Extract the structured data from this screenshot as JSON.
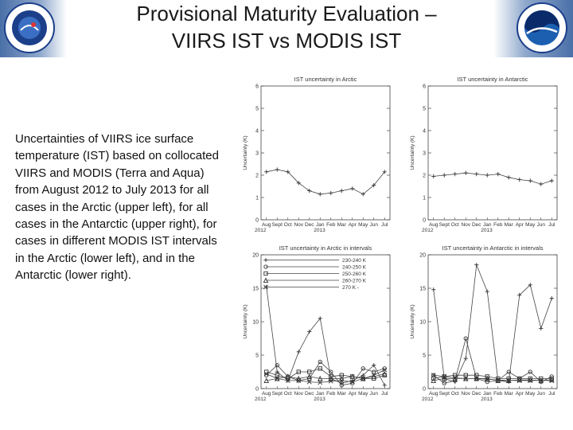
{
  "slide": {
    "title_line1": "Provisional Maturity Evaluation –",
    "title_line2": "VIIRS IST vs MODIS IST",
    "caption": "Uncertainties of VIIRS ice surface temperature (IST) based on collocated VIIRS and MODIS (Terra and Aqua) from August 2012 to July 2013 for all cases in the Arctic (upper left), for all cases in the Antarctic (upper right), for cases in different MODIS IST intervals in the Arctic (lower left), and in the Antarctic (lower right).",
    "left_logo": "nesdis-seal-icon",
    "right_logo": "noaa-logo-icon"
  },
  "chart_data": [
    {
      "id": "arctic-all",
      "type": "line",
      "title": "IST uncertainty in Arctic",
      "ylabel": "Uncertainty (K)",
      "xlabel": "",
      "categories": [
        "Aug",
        "Sept",
        "Oct",
        "Nov",
        "Dec",
        "Jan",
        "Feb",
        "Mar",
        "Apr",
        "May",
        "Jun",
        "Jul"
      ],
      "year_labels": [
        "2012",
        "2013"
      ],
      "ylim": [
        0,
        6
      ],
      "yticks": [
        0,
        1,
        2,
        3,
        4,
        5,
        6
      ],
      "series": [
        {
          "values": [
            2.15,
            2.25,
            2.15,
            1.65,
            1.3,
            1.15,
            1.2,
            1.3,
            1.4,
            1.15,
            1.55,
            2.15
          ]
        }
      ]
    },
    {
      "id": "antarctic-all",
      "type": "line",
      "title": "IST uncertainty in Antarctic",
      "ylabel": "Uncertainty (K)",
      "xlabel": "",
      "categories": [
        "Aug",
        "Sept",
        "Oct",
        "Nov",
        "Dec",
        "Jan",
        "Feb",
        "Mar",
        "Apr",
        "May",
        "Jun",
        "Jul"
      ],
      "year_labels": [
        "2012",
        "2013"
      ],
      "ylim": [
        0,
        6
      ],
      "yticks": [
        0,
        1,
        2,
        3,
        4,
        5,
        6
      ],
      "series": [
        {
          "values": [
            1.95,
            2.0,
            2.05,
            2.1,
            2.05,
            2.0,
            2.05,
            1.9,
            1.8,
            1.75,
            1.6,
            1.75
          ]
        }
      ]
    },
    {
      "id": "arctic-intervals",
      "type": "line",
      "title": "IST uncertainty in Arctic in intervals",
      "ylabel": "Uncertainty (K)",
      "xlabel": "",
      "categories": [
        "Aug",
        "Sept",
        "Oct",
        "Nov",
        "Dec",
        "Jan",
        "Feb",
        "Mar",
        "Apr",
        "May",
        "Jun",
        "Jul"
      ],
      "year_labels": [
        "2012",
        "2013"
      ],
      "ylim": [
        0,
        20
      ],
      "yticks": [
        0,
        5,
        10,
        15,
        20
      ],
      "series": [
        {
          "name": "230-240 K",
          "values": [
            15.2,
            2.5,
            1.2,
            5.5,
            8.5,
            10.5,
            1.5,
            0.8,
            1.2,
            2.0,
            3.5,
            0.5
          ]
        },
        {
          "name": "240-250 K",
          "values": [
            2.0,
            3.5,
            1.8,
            1.2,
            1.5,
            4.0,
            2.5,
            0.5,
            0.8,
            3.0,
            2.5,
            3.0
          ]
        },
        {
          "name": "250-260 K",
          "values": [
            2.5,
            2.0,
            1.5,
            2.5,
            2.5,
            3.0,
            1.8,
            2.0,
            1.8,
            1.5,
            1.5,
            2.0
          ]
        },
        {
          "name": "260-270 K",
          "values": [
            1.2,
            1.5,
            1.8,
            1.5,
            1.8,
            1.5,
            1.5,
            1.5,
            1.8,
            1.5,
            1.8,
            2.2
          ]
        },
        {
          "name": "270 K -",
          "values": [
            2.2,
            1.5,
            1.2,
            1.2,
            1.0,
            0.9,
            1.1,
            1.2,
            1.0,
            1.5,
            2.0,
            2.8
          ]
        }
      ]
    },
    {
      "id": "antarctic-intervals",
      "type": "line",
      "title": "IST uncertainty in Antarctic in intervals",
      "ylabel": "Uncertainty (K)",
      "xlabel": "",
      "categories": [
        "Aug",
        "Sept",
        "Oct",
        "Nov",
        "Dec",
        "Jan",
        "Feb",
        "Mar",
        "Apr",
        "May",
        "Jun",
        "Jul"
      ],
      "year_labels": [
        "2012",
        "2013"
      ],
      "ylim": [
        0,
        20
      ],
      "yticks": [
        0,
        5,
        10,
        15,
        20
      ],
      "series": [
        {
          "values": [
            14.8,
            1.5,
            1.0,
            4.5,
            18.5,
            14.5,
            1.2,
            1.0,
            14.0,
            15.5,
            9.0,
            13.5
          ]
        },
        {
          "values": [
            2.0,
            0.8,
            1.2,
            7.5,
            1.5,
            1.0,
            1.2,
            2.5,
            1.5,
            2.5,
            1.0,
            1.8
          ]
        },
        {
          "values": [
            1.5,
            1.8,
            2.0,
            2.0,
            2.0,
            1.8,
            1.5,
            1.5,
            1.5,
            1.5,
            1.5,
            1.5
          ]
        },
        {
          "values": [
            1.2,
            1.5,
            1.5,
            1.5,
            1.5,
            1.5,
            1.2,
            1.2,
            1.3,
            1.3,
            1.2,
            1.3
          ]
        },
        {
          "values": [
            2.0,
            1.8,
            1.6,
            1.5,
            1.5,
            1.4,
            1.3,
            1.2,
            1.2,
            1.2,
            1.2,
            1.2
          ]
        }
      ]
    }
  ]
}
